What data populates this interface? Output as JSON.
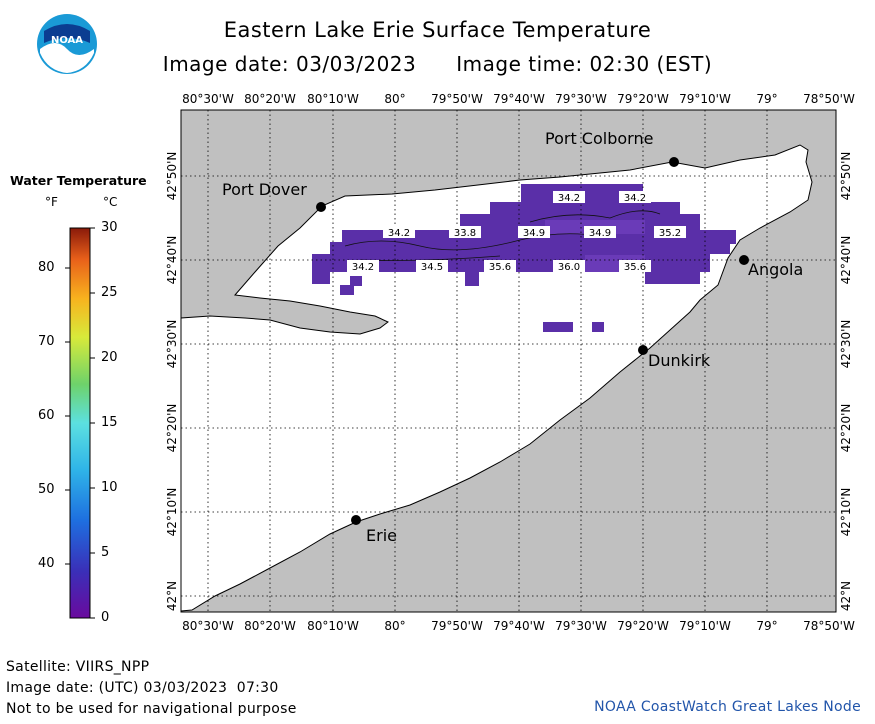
{
  "title": "Eastern Lake Erie Surface Temperature",
  "image_date_label": "Image date: 03/03/2023",
  "image_time_label": "Image time: 02:30 (EST)",
  "logo_text": "NOAA",
  "legend": {
    "title": "Water Temperature",
    "unit_f": "°F",
    "unit_c": "°C",
    "f_ticks": [
      "80",
      "70",
      "60",
      "50",
      "40"
    ],
    "c_ticks": [
      "30",
      "25",
      "20",
      "15",
      "10",
      "5",
      "0"
    ]
  },
  "map": {
    "lon_labels": [
      "80°30'W",
      "80°20'W",
      "80°10'W",
      "80°",
      "79°50'W",
      "79°40'W",
      "79°30'W",
      "79°20'W",
      "79°10'W",
      "79°",
      "78°50'W"
    ],
    "lat_labels": [
      "42°50'N",
      "42°40'N",
      "42°30'N",
      "42°20'N",
      "42°10'N",
      "42°N"
    ],
    "cities": [
      "Port Colborne",
      "Port Dover",
      "Angola",
      "Dunkirk",
      "Erie"
    ],
    "temperature_labels": [
      "34.2",
      "34.2",
      "34.2",
      "33.8",
      "34.9",
      "34.9",
      "35.2",
      "34.2",
      "34.5",
      "35.6",
      "36.0",
      "35.6"
    ],
    "colors": {
      "land": "#c0c0c0",
      "water_no_data": "#ffffff",
      "cold_water": "#5a2fa8",
      "grid": "#000000"
    }
  },
  "footer": {
    "satellite": "Satellite: VIIRS_NPP",
    "utc_date": "Image date: (UTC) 03/03/2023  07:30",
    "disclaimer": "Not to be used for navigational purpose",
    "credit": "NOAA CoastWatch Great Lakes Node"
  }
}
